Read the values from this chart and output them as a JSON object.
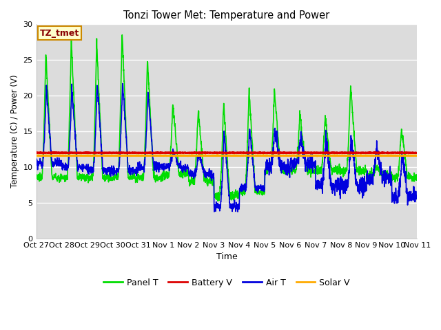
{
  "title": "Tonzi Tower Met: Temperature and Power",
  "xlabel": "Time",
  "ylabel": "Temperature (C) / Power (V)",
  "ylim": [
    0,
    30
  ],
  "yticks": [
    0,
    5,
    10,
    15,
    20,
    25,
    30
  ],
  "bg_color": "#dcdcdc",
  "fig_color": "#ffffff",
  "label_box": "TZ_tmet",
  "label_box_bg": "#ffffcc",
  "label_box_edge": "#cc8800",
  "label_box_text": "#880000",
  "series": {
    "panel_t": {
      "color": "#00dd00",
      "label": "Panel T",
      "lw": 1.2
    },
    "battery_v": {
      "color": "#dd0000",
      "label": "Battery V",
      "lw": 2.0
    },
    "air_t": {
      "color": "#0000dd",
      "label": "Air T",
      "lw": 1.2
    },
    "solar_v": {
      "color": "#ffaa00",
      "label": "Solar V",
      "lw": 2.0
    }
  },
  "xtick_labels": [
    "Oct 27",
    "Oct 28",
    "Oct 29",
    "Oct 30",
    "Oct 31",
    "Nov 1",
    "Nov 2",
    "Nov 3",
    "Nov 4",
    "Nov 5",
    "Nov 6",
    "Nov 7",
    "Nov 8",
    "Nov 9",
    "Nov 10",
    "Nov 11"
  ],
  "battery_v_level": 12.0,
  "solar_v_level": 11.6
}
